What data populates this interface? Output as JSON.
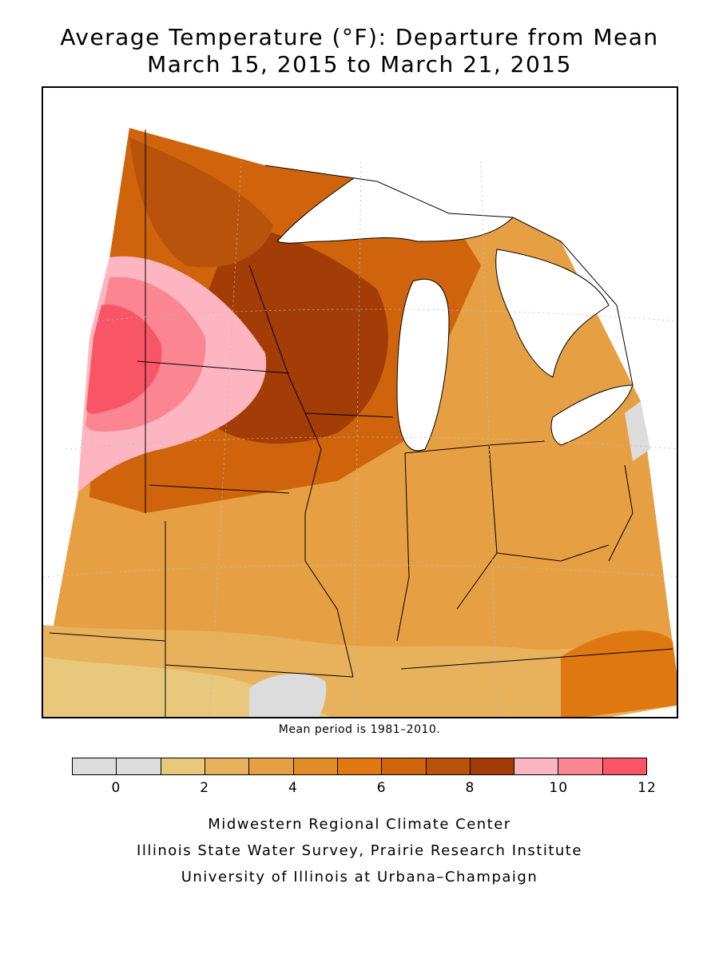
{
  "title_line1": "Average Temperature (°F): Departure from Mean",
  "title_line2": "March 15, 2015 to March 21, 2015",
  "mean_note": "Mean period is 1981–2010.",
  "legend": {
    "colors": [
      "#dcdcdc",
      "#dcdcdc",
      "#e8c87a",
      "#e8b15c",
      "#e6a043",
      "#e38d28",
      "#e07812",
      "#cf640c",
      "#b9520a",
      "#a33c06",
      "#fdb6c1",
      "#fb8590",
      "#f85567"
    ],
    "tick_labels": [
      "0",
      "2",
      "4",
      "6",
      "8",
      "10",
      "12"
    ]
  },
  "credits": {
    "line1": "Midwestern Regional Climate Center",
    "line2": "Illinois State Water Survey, Prairie Research Institute",
    "line3": "University of Illinois at Urbana–Champaign"
  }
}
